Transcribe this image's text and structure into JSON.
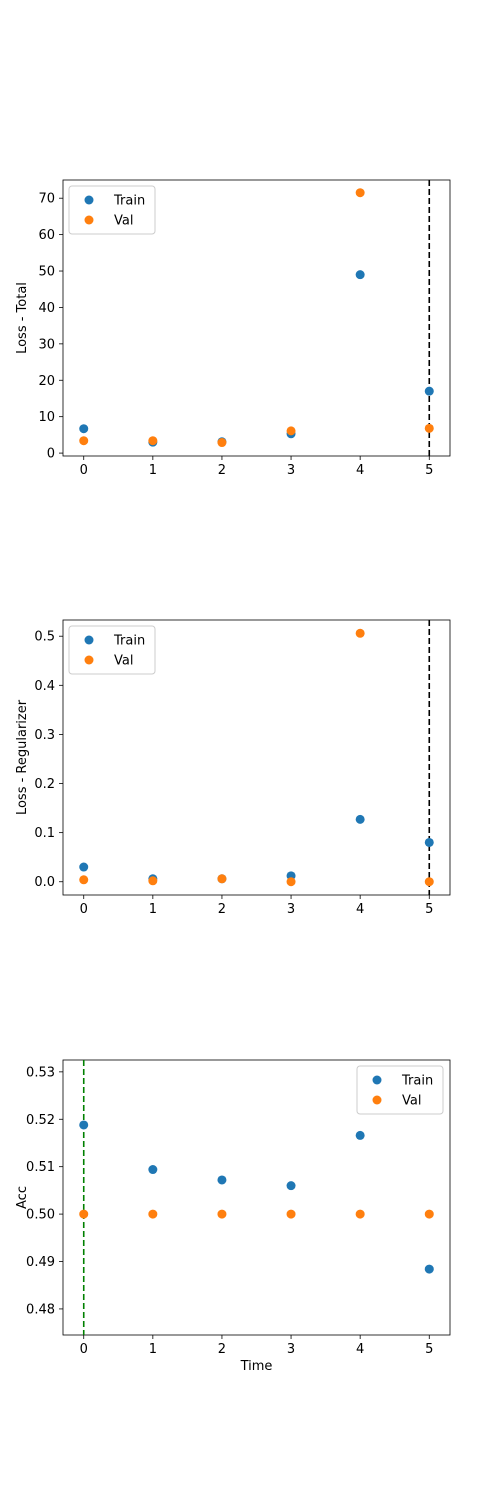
{
  "legend": {
    "train": "Train",
    "val": "Val"
  },
  "colors": {
    "train": "#1f77b4",
    "val": "#ff7f0e",
    "vline_black": "#000000",
    "vline_green": "#008000"
  },
  "chart_data": [
    {
      "type": "scatter",
      "ylabel": "Loss - Total",
      "xlabel": "",
      "x": [
        0,
        1,
        2,
        3,
        4,
        5
      ],
      "xlim": [
        -0.3,
        5.3
      ],
      "ylim": [
        -0.8,
        75
      ],
      "xticks": [
        "0",
        "1",
        "2",
        "3",
        "4",
        "5"
      ],
      "yticks": [
        0,
        10,
        20,
        30,
        40,
        50,
        60,
        70
      ],
      "ytick_labels": [
        "0",
        "10",
        "20",
        "30",
        "40",
        "50",
        "60",
        "70"
      ],
      "series": [
        {
          "name": "Train",
          "values": [
            6.7,
            3.0,
            3.1,
            5.3,
            49.0,
            17.0
          ]
        },
        {
          "name": "Val",
          "values": [
            3.4,
            3.4,
            2.9,
            6.1,
            71.5,
            6.8
          ]
        }
      ],
      "vline": {
        "x": 5,
        "color": "black"
      },
      "legend_position": "upper-left",
      "grid": false
    },
    {
      "type": "scatter",
      "ylabel": "Loss - Regularizer",
      "xlabel": "",
      "x": [
        0,
        1,
        2,
        3,
        4,
        5
      ],
      "xlim": [
        -0.3,
        5.3
      ],
      "ylim": [
        -0.027,
        0.533
      ],
      "xticks": [
        "0",
        "1",
        "2",
        "3",
        "4",
        "5"
      ],
      "yticks": [
        0.0,
        0.1,
        0.2,
        0.3,
        0.4,
        0.5
      ],
      "ytick_labels": [
        "0.0",
        "0.1",
        "0.2",
        "0.3",
        "0.4",
        "0.5"
      ],
      "series": [
        {
          "name": "Train",
          "values": [
            0.03,
            0.006,
            0.006,
            0.012,
            0.127,
            0.08
          ]
        },
        {
          "name": "Val",
          "values": [
            0.004,
            0.002,
            0.006,
            0.0,
            0.506,
            0.0
          ]
        }
      ],
      "vline": {
        "x": 5,
        "color": "black"
      },
      "legend_position": "upper-left",
      "grid": false
    },
    {
      "type": "scatter",
      "ylabel": "Acc",
      "xlabel": "Time",
      "x": [
        0,
        1,
        2,
        3,
        4,
        5
      ],
      "xlim": [
        -0.3,
        5.3
      ],
      "ylim": [
        0.4745,
        0.5325
      ],
      "xticks": [
        "0",
        "1",
        "2",
        "3",
        "4",
        "5"
      ],
      "yticks": [
        0.48,
        0.49,
        0.5,
        0.51,
        0.52,
        0.53
      ],
      "ytick_labels": [
        "0.48",
        "0.49",
        "0.50",
        "0.51",
        "0.52",
        "0.53"
      ],
      "series": [
        {
          "name": "Train",
          "values": [
            0.5188,
            0.5094,
            0.5072,
            0.506,
            0.5166,
            0.4884
          ]
        },
        {
          "name": "Val",
          "values": [
            0.5,
            0.5,
            0.5,
            0.5,
            0.5,
            0.5
          ]
        }
      ],
      "vline": {
        "x": 0,
        "color": "green"
      },
      "legend_position": "upper-right",
      "grid": false
    }
  ]
}
